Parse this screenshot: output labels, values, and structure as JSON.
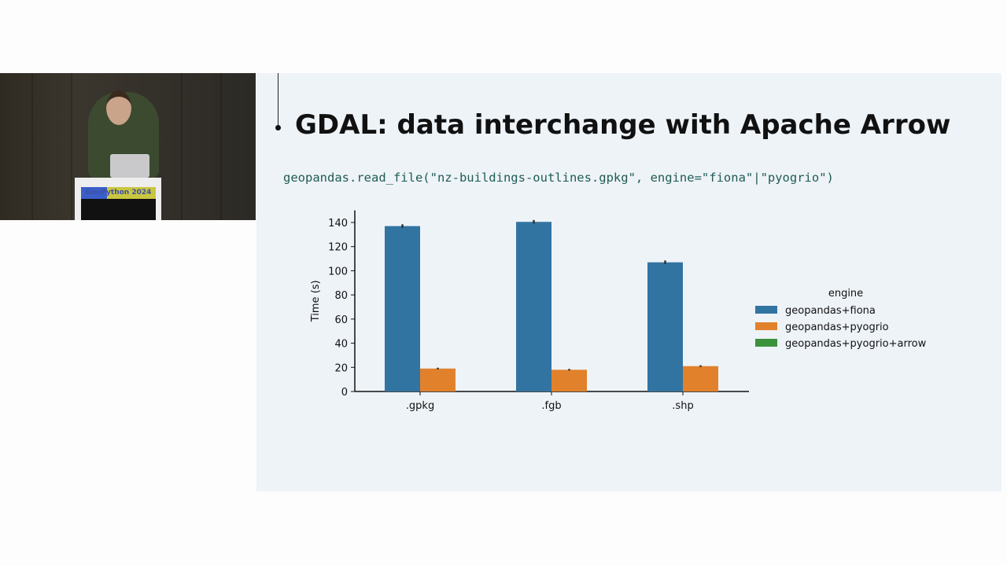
{
  "video": {
    "podium_sign": "GeoPython 2024"
  },
  "slide": {
    "title": "GDAL: data interchange with Apache Arrow",
    "code": "geopandas.read_file(\"nz-buildings-outlines.gpkg\", engine=\"fiona\"|\"pyogrio\")"
  },
  "chart_data": {
    "type": "bar",
    "categories": [
      ".gpkg",
      ".fgb",
      ".shp"
    ],
    "ylabel": "Time (s)",
    "xlabel": "",
    "ylim": [
      0,
      150
    ],
    "yticks": [
      0,
      20,
      40,
      60,
      80,
      100,
      120,
      140
    ],
    "legend_title": "engine",
    "legend_placement": "right",
    "grid": false,
    "error_bars": true,
    "series": [
      {
        "name": "geopandas+fiona",
        "color": "#3274a1",
        "values": [
          137,
          140.5,
          107
        ]
      },
      {
        "name": "geopandas+pyogrio",
        "color": "#e1812c",
        "values": [
          19,
          18,
          21
        ]
      },
      {
        "name": "geopandas+pyogrio+arrow",
        "color": "#3a923a",
        "values": [
          null,
          null,
          null
        ]
      }
    ]
  }
}
